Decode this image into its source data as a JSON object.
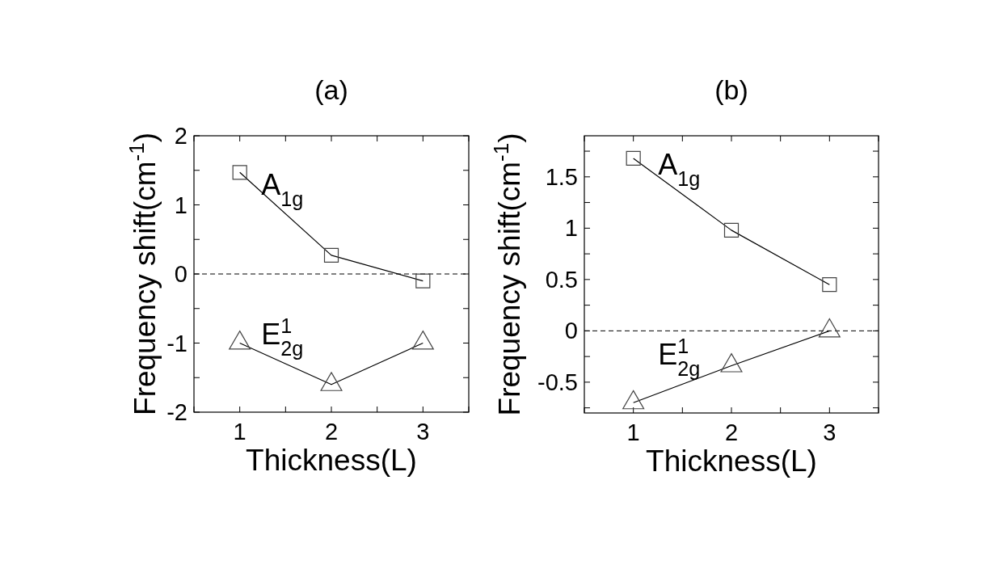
{
  "chart_data": [
    {
      "type": "line",
      "title": "(a)",
      "xlabel": "Thickness(L)",
      "ylabel": "Frequency shift(cm$^{-1}$)",
      "x": [
        1,
        2,
        3
      ],
      "xlim": [
        0.5,
        3.5
      ],
      "xticks": [
        {
          "value": 0.5,
          "label": null
        },
        1,
        {
          "value": 1.5,
          "label": null
        },
        2,
        {
          "value": 2.5,
          "label": null
        },
        3,
        {
          "value": 3.5,
          "label": null
        }
      ],
      "ylim": [
        -2,
        2
      ],
      "yticks": [
        -2,
        {
          "value": -1.5,
          "label": null
        },
        -1,
        {
          "value": -0.5,
          "label": null
        },
        0,
        {
          "value": 0.5,
          "label": null
        },
        1,
        {
          "value": 1.5,
          "label": null
        },
        2
      ],
      "series": [
        {
          "name": "A$_{1g}$",
          "color": "#000000",
          "marker": "square",
          "values": [
            1.47,
            0.27,
            -0.1
          ]
        },
        {
          "name": "E$^{1}$$_{2g}$",
          "color": "#000000",
          "marker": "triangle",
          "values": [
            -1.0,
            -1.6,
            -1.0
          ]
        }
      ],
      "ref_lines": [
        {
          "axis": "y",
          "value": 0,
          "line_style": "dashed",
          "color": "#000000"
        }
      ]
    },
    {
      "type": "line",
      "title": "(b)",
      "xlabel": "Thickness(L)",
      "ylabel": "Frequency shift(cm$^{-1}$)",
      "x": [
        1,
        2,
        3
      ],
      "xlim": [
        0.5,
        3.5
      ],
      "xticks": [
        {
          "value": 0.5,
          "label": null
        },
        1,
        {
          "value": 1.5,
          "label": null
        },
        2,
        {
          "value": 2.5,
          "label": null
        },
        3,
        {
          "value": 3.5,
          "label": null
        }
      ],
      "ylim": [
        -0.8,
        1.9
      ],
      "yticks": [
        {
          "value": -0.75,
          "label": null
        },
        -0.5,
        {
          "value": -0.25,
          "label": null
        },
        0,
        {
          "value": 0.25,
          "label": null
        },
        0.5,
        {
          "value": 0.75,
          "label": null
        },
        1,
        {
          "value": 1.25,
          "label": null
        },
        1.5,
        {
          "value": 1.75,
          "label": null
        }
      ],
      "series": [
        {
          "name": "A$_{1g}$",
          "color": "#000000",
          "marker": "square",
          "values": [
            1.68,
            0.98,
            0.45
          ]
        },
        {
          "name": "E$^{1}$$_{2g}$",
          "color": "#000000",
          "marker": "triangle",
          "values": [
            -0.7,
            -0.34,
            0
          ]
        }
      ],
      "ref_lines": [
        {
          "axis": "y",
          "value": 0,
          "line_style": "dashed",
          "color": "#000000"
        }
      ]
    }
  ]
}
